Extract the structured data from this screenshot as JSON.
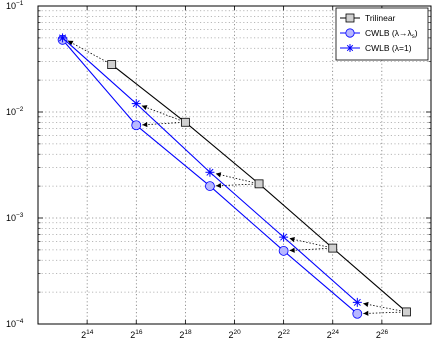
{
  "chart_data": {
    "type": "line",
    "title": "",
    "xlabel": "",
    "ylabel": "",
    "x_scale": "log2",
    "y_scale": "log10",
    "xlim": [
      4096,
      268435456
    ],
    "ylim": [
      0.0001,
      0.1
    ],
    "grid": true,
    "legend_position": "top-right",
    "x_ticks": [
      {
        "value": 16384,
        "base": "2",
        "exp": "14"
      },
      {
        "value": 65536,
        "base": "2",
        "exp": "16"
      },
      {
        "value": 262144,
        "base": "2",
        "exp": "18"
      },
      {
        "value": 1048576,
        "base": "2",
        "exp": "20"
      },
      {
        "value": 4194304,
        "base": "2",
        "exp": "22"
      },
      {
        "value": 16777216,
        "base": "2",
        "exp": "24"
      },
      {
        "value": 67108864,
        "base": "2",
        "exp": "26"
      }
    ],
    "y_ticks": [
      {
        "value": 0.0001,
        "base": "10",
        "exp": "−4"
      },
      {
        "value": 0.001,
        "base": "10",
        "exp": "−3"
      },
      {
        "value": 0.01,
        "base": "10",
        "exp": "−2"
      },
      {
        "value": 0.1,
        "base": "10",
        "exp": "−1"
      }
    ],
    "series": [
      {
        "name": "Trilinear",
        "color": "#000000",
        "marker": "square",
        "x": [
          32768,
          262144,
          2097152,
          16777216,
          134217728
        ],
        "y": [
          0.028,
          0.008,
          0.0021,
          0.00052,
          0.00013
        ]
      },
      {
        "name": "CWLB (λ→λ_s)",
        "legend_main": "CWLB (",
        "legend_lambda": "λ",
        "legend_arrow": "→",
        "legend_sub_lambda": "λ",
        "legend_sub": "s",
        "legend_close": ")",
        "color": "#0000ff",
        "marker": "circle",
        "x": [
          8192,
          65536,
          524288,
          4194304,
          33554432
        ],
        "y": [
          0.048,
          0.0075,
          0.002,
          0.00049,
          0.000125
        ]
      },
      {
        "name": "CWLB (λ=1)",
        "legend_main": "CWLB (",
        "legend_lambda": "λ",
        "legend_rest": "=1)",
        "color": "#0000ff",
        "marker": "star",
        "x": [
          8192,
          65536,
          524288,
          4194304,
          33554432
        ],
        "y": [
          0.05,
          0.012,
          0.0027,
          0.00066,
          0.00016
        ]
      }
    ],
    "annotations": {
      "type": "dotted-arrows",
      "color": "#000000",
      "arrows": [
        {
          "from": [
            32768,
            0.028
          ],
          "to": [
            8192,
            0.05
          ]
        },
        {
          "from": [
            262144,
            0.008
          ],
          "to": [
            65536,
            0.012
          ]
        },
        {
          "from": [
            262144,
            0.008
          ],
          "to": [
            65536,
            0.0075
          ]
        },
        {
          "from": [
            2097152,
            0.0021
          ],
          "to": [
            524288,
            0.0027
          ]
        },
        {
          "from": [
            2097152,
            0.0021
          ],
          "to": [
            524288,
            0.002
          ]
        },
        {
          "from": [
            16777216,
            0.00052
          ],
          "to": [
            4194304,
            0.00066
          ]
        },
        {
          "from": [
            16777216,
            0.00052
          ],
          "to": [
            4194304,
            0.00049
          ]
        },
        {
          "from": [
            134217728,
            0.00013
          ],
          "to": [
            33554432,
            0.00016
          ]
        },
        {
          "from": [
            134217728,
            0.00013
          ],
          "to": [
            33554432,
            0.000125
          ]
        }
      ]
    }
  }
}
